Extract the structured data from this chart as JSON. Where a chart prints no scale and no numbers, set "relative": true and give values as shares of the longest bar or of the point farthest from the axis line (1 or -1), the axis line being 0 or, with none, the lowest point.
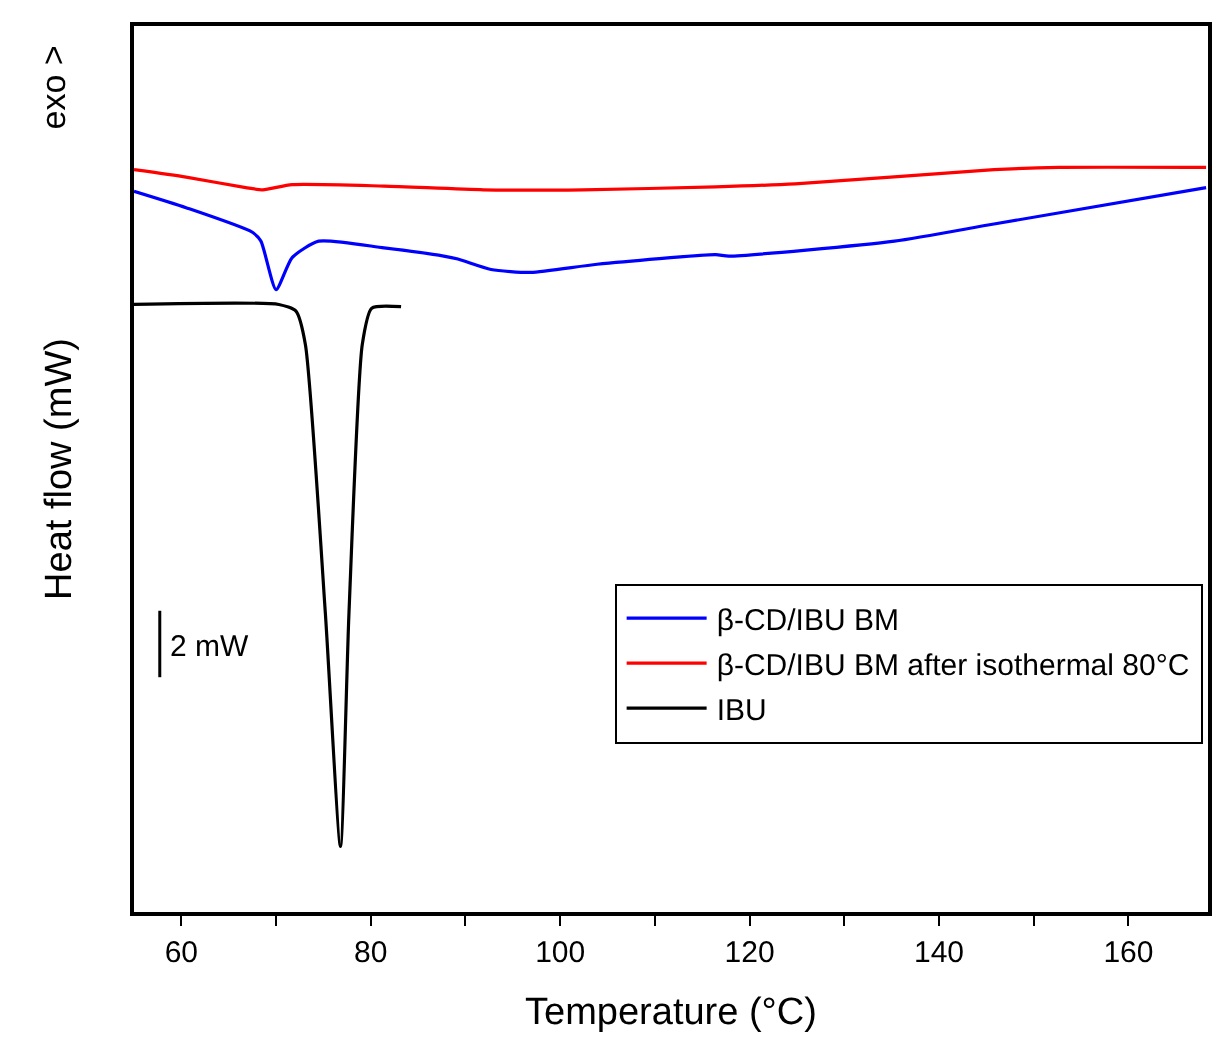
{
  "chart_data": {
    "type": "line",
    "relative": true,
    "xlabel": "Temperature (°C)",
    "ylabel": "Heat flow (mW)",
    "annotations": [
      "exo >",
      "2 mW"
    ],
    "xlim": [
      55,
      168.4
    ],
    "xticks": [
      60,
      {
        "value": 70,
        "label": null
      },
      80,
      {
        "value": 90,
        "label": null
      },
      100,
      {
        "value": 110,
        "label": null
      },
      120,
      {
        "value": 130,
        "label": null
      },
      140,
      {
        "value": 150,
        "label": null
      },
      160
    ],
    "tick_labels": "x",
    "legend": "bottom right",
    "marker": "none",
    "line_style": "solid",
    "series": [
      {
        "name": "β-CD/IBU BM",
        "color": "#0000ff",
        "x": [
          55,
          60.5,
          67.5,
          68.4,
          70,
          71.7,
          74.5,
          81.4,
          87.7,
          89.2,
          92.7,
          96.9,
          103.9,
          116.4,
          117.8,
          135.3,
          145.8,
          168.2
        ],
        "values": [
          0.968,
          0.946,
          0.913,
          0.901,
          0.836,
          0.879,
          0.901,
          0.892,
          0.881,
          0.877,
          0.863,
          0.859,
          0.87,
          0.883,
          0.881,
          0.901,
          0.924,
          0.973
        ]
      },
      {
        "name": "β-CD/IBU BM after isothermal 80°C",
        "color": "#ff0000",
        "x": [
          55,
          60.5,
          66.8,
          68.6,
          71.7,
          81.4,
          91.9,
          102.4,
          116.4,
          124.8,
          145.8,
          152.7,
          168.2
        ],
        "values": [
          0.997,
          0.987,
          0.973,
          0.97,
          0.977,
          0.975,
          0.97,
          0.97,
          0.974,
          0.978,
          0.997,
          1.0,
          1.0
        ]
      },
      {
        "name": "IBU",
        "color": "#000000",
        "x": [
          55,
          70.3,
          72.1,
          73.1,
          75.2,
          76.8,
          77.7,
          79.1,
          80.1,
          83.2
        ],
        "values": [
          0.816,
          0.816,
          0.807,
          0.762,
          0.402,
          0.088,
          0.402,
          0.762,
          0.811,
          0.813
        ]
      }
    ]
  }
}
